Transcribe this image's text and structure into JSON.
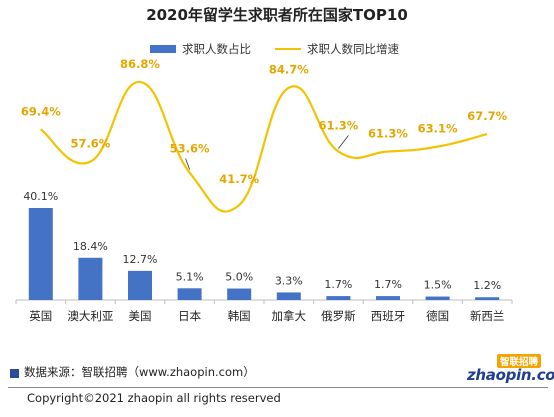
{
  "chart_data": {
    "type": "bar+line",
    "title": "2020年留学生求职者所在国家TOP10",
    "categories": [
      "英国",
      "澳大利亚",
      "美国",
      "日本",
      "韩国",
      "加拿大",
      "俄罗斯",
      "西班牙",
      "德国",
      "新西兰"
    ],
    "series": [
      {
        "name": "求职人数占比",
        "kind": "bar",
        "color": "#4472C4",
        "values": [
          40.1,
          18.4,
          12.7,
          5.1,
          5.0,
          3.3,
          1.7,
          1.7,
          1.5,
          1.2
        ],
        "labels": [
          "40.1%",
          "18.4%",
          "12.7%",
          "5.1%",
          "5.0%",
          "3.3%",
          "1.7%",
          "1.7%",
          "1.5%",
          "1.2%"
        ]
      },
      {
        "name": "求职人数同比增速",
        "kind": "line",
        "color": "#F2C300",
        "label_color": "#E6A600",
        "values": [
          69.4,
          57.6,
          86.8,
          53.6,
          41.7,
          84.7,
          61.3,
          61.3,
          63.1,
          67.7
        ],
        "labels": [
          "69.4%",
          "57.6%",
          "86.8%",
          "53.6%",
          "41.7%",
          "84.7%",
          "61.3%",
          "61.3%",
          "63.1%",
          "67.7%"
        ]
      }
    ],
    "legend_position": "top",
    "grid": false
  },
  "footer": {
    "source": "数据来源：智联招聘（www.zhaopin.com）",
    "copyright": "Copyright©2021 zhaopin all rights reserved",
    "brand_main": "zhaopin.com",
    "brand_sub": "智联招聘"
  }
}
